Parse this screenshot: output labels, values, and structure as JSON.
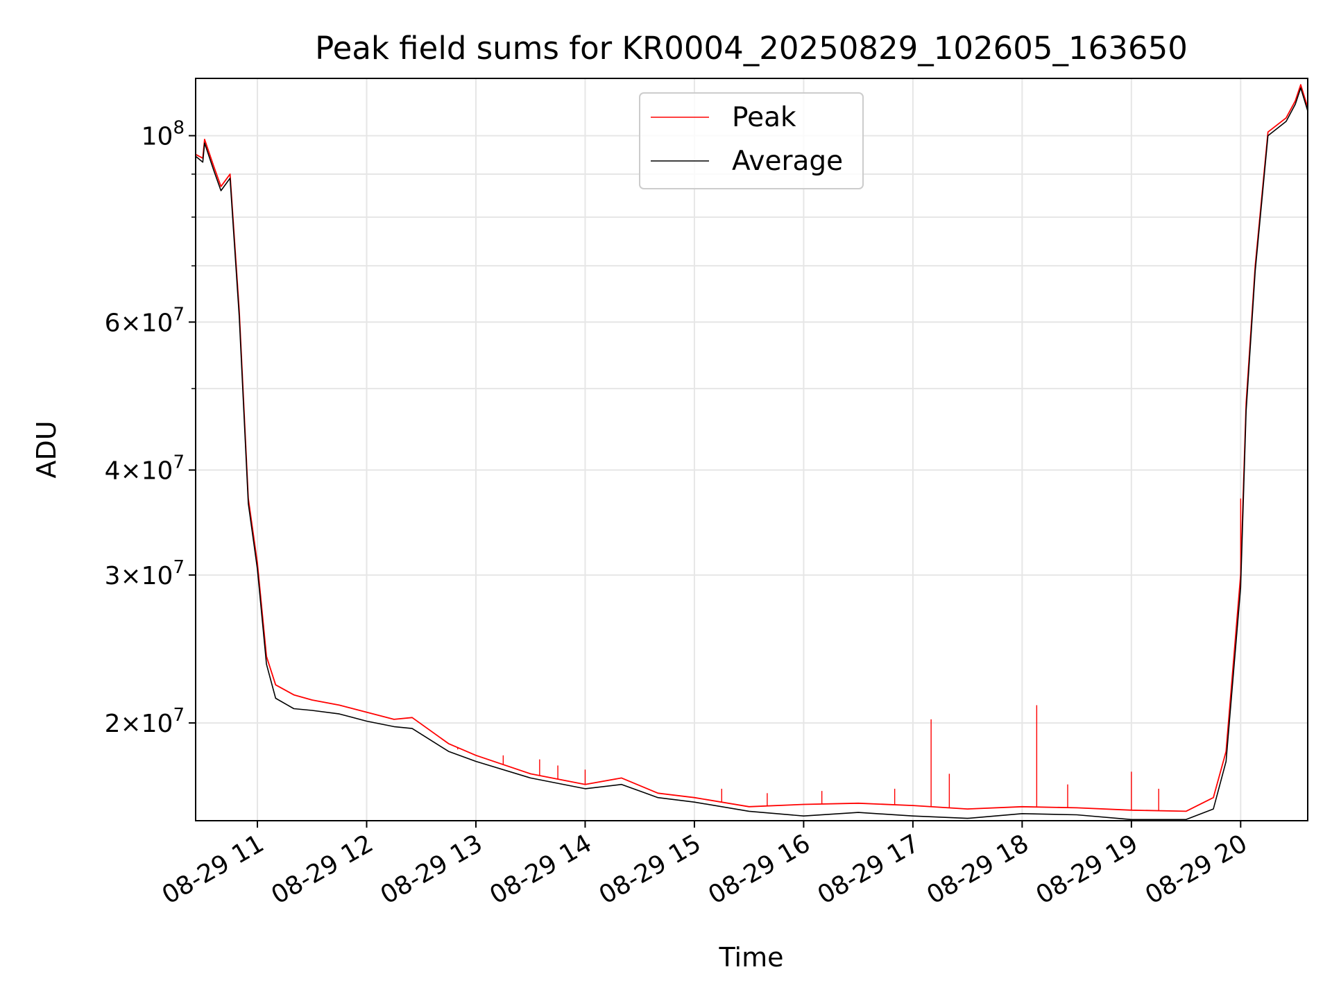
{
  "chart_data": {
    "type": "line",
    "title": "Peak field sums for KR0004_20250829_102605_163650",
    "xlabel": "Time",
    "ylabel": "ADU",
    "yscale": "log",
    "grid": true,
    "legend_position": "top-center",
    "xlim": [
      "2025-08-29T10:26:05",
      "2025-08-29T20:36:50"
    ],
    "ylim": [
      15300000,
      117000000
    ],
    "x_ticks": [
      {
        "value": "2025-08-29T11:00",
        "label": "08-29 11"
      },
      {
        "value": "2025-08-29T12:00",
        "label": "08-29 12"
      },
      {
        "value": "2025-08-29T13:00",
        "label": "08-29 13"
      },
      {
        "value": "2025-08-29T14:00",
        "label": "08-29 14"
      },
      {
        "value": "2025-08-29T15:00",
        "label": "08-29 15"
      },
      {
        "value": "2025-08-29T16:00",
        "label": "08-29 16"
      },
      {
        "value": "2025-08-29T17:00",
        "label": "08-29 17"
      },
      {
        "value": "2025-08-29T18:00",
        "label": "08-29 18"
      },
      {
        "value": "2025-08-29T19:00",
        "label": "08-29 19"
      },
      {
        "value": "2025-08-29T20:00",
        "label": "08-29 20"
      }
    ],
    "y_ticks": [
      {
        "value": 20000000,
        "mantissa": "2",
        "exp": "7"
      },
      {
        "value": 30000000,
        "mantissa": "3",
        "exp": "7"
      },
      {
        "value": 40000000,
        "mantissa": "4",
        "exp": "7"
      },
      {
        "value": 60000000,
        "mantissa": "6",
        "exp": "7"
      },
      {
        "value": 100000000,
        "mantissa": "",
        "exp": "8"
      }
    ],
    "y_minor_ticks": [
      50000000,
      70000000,
      80000000,
      90000000
    ],
    "series": [
      {
        "name": "Peak",
        "color": "#ff0000",
        "points": [
          [
            "2025-08-29T10:26:05",
            95000000
          ],
          [
            "2025-08-29T10:30",
            94000000
          ],
          [
            "2025-08-29T10:31",
            99000000
          ],
          [
            "2025-08-29T10:36",
            92000000
          ],
          [
            "2025-08-29T10:40",
            87000000
          ],
          [
            "2025-08-29T10:45",
            90000000
          ],
          [
            "2025-08-29T10:50",
            62000000
          ],
          [
            "2025-08-29T10:55",
            37000000
          ],
          [
            "2025-08-29T11:00",
            31000000
          ],
          [
            "2025-08-29T11:05",
            24000000
          ],
          [
            "2025-08-29T11:10",
            22200000
          ],
          [
            "2025-08-29T11:20",
            21600000
          ],
          [
            "2025-08-29T11:30",
            21300000
          ],
          [
            "2025-08-29T11:45",
            21000000
          ],
          [
            "2025-08-29T12:00",
            20600000
          ],
          [
            "2025-08-29T12:15",
            20200000
          ],
          [
            "2025-08-29T12:25",
            20300000
          ],
          [
            "2025-08-29T12:45",
            18900000
          ],
          [
            "2025-08-29T13:00",
            18300000
          ],
          [
            "2025-08-29T13:30",
            17400000
          ],
          [
            "2025-08-29T14:00",
            16900000
          ],
          [
            "2025-08-29T14:20",
            17200000
          ],
          [
            "2025-08-29T14:40",
            16500000
          ],
          [
            "2025-08-29T15:00",
            16300000
          ],
          [
            "2025-08-29T15:30",
            15900000
          ],
          [
            "2025-08-29T16:00",
            16000000
          ],
          [
            "2025-08-29T16:30",
            16050000
          ],
          [
            "2025-08-29T17:00",
            15950000
          ],
          [
            "2025-08-29T17:30",
            15800000
          ],
          [
            "2025-08-29T18:00",
            15900000
          ],
          [
            "2025-08-29T18:30",
            15850000
          ],
          [
            "2025-08-29T19:00",
            15750000
          ],
          [
            "2025-08-29T19:30",
            15700000
          ],
          [
            "2025-08-29T19:45",
            16300000
          ],
          [
            "2025-08-29T19:52",
            18500000
          ],
          [
            "2025-08-29T20:00",
            30000000
          ],
          [
            "2025-08-29T20:03",
            48000000
          ],
          [
            "2025-08-29T20:08",
            70000000
          ],
          [
            "2025-08-29T20:15",
            101000000
          ],
          [
            "2025-08-29T20:25",
            105000000
          ],
          [
            "2025-08-29T20:30",
            110000000
          ],
          [
            "2025-08-29T20:33",
            115000000
          ],
          [
            "2025-08-29T20:36:50",
            108000000
          ]
        ],
        "spikes": [
          [
            "2025-08-29T12:50",
            18600000
          ],
          [
            "2025-08-29T13:15",
            18300000
          ],
          [
            "2025-08-29T13:35",
            18100000
          ],
          [
            "2025-08-29T13:45",
            17800000
          ],
          [
            "2025-08-29T14:00",
            17600000
          ],
          [
            "2025-08-29T15:15",
            16700000
          ],
          [
            "2025-08-29T15:40",
            16500000
          ],
          [
            "2025-08-29T16:10",
            16600000
          ],
          [
            "2025-08-29T16:50",
            16700000
          ],
          [
            "2025-08-29T17:10",
            20200000
          ],
          [
            "2025-08-29T17:20",
            17400000
          ],
          [
            "2025-08-29T18:08",
            21000000
          ],
          [
            "2025-08-29T18:25",
            16900000
          ],
          [
            "2025-08-29T19:00",
            17500000
          ],
          [
            "2025-08-29T19:15",
            16700000
          ],
          [
            "2025-08-29T20:00",
            37000000
          ]
        ]
      },
      {
        "name": "Average",
        "color": "#000000",
        "points": [
          [
            "2025-08-29T10:26:05",
            94500000
          ],
          [
            "2025-08-29T10:30",
            93000000
          ],
          [
            "2025-08-29T10:31",
            98000000
          ],
          [
            "2025-08-29T10:36",
            91000000
          ],
          [
            "2025-08-29T10:40",
            86000000
          ],
          [
            "2025-08-29T10:45",
            89000000
          ],
          [
            "2025-08-29T10:50",
            61000000
          ],
          [
            "2025-08-29T10:55",
            36500000
          ],
          [
            "2025-08-29T11:00",
            30500000
          ],
          [
            "2025-08-29T11:05",
            23500000
          ],
          [
            "2025-08-29T11:10",
            21400000
          ],
          [
            "2025-08-29T11:20",
            20800000
          ],
          [
            "2025-08-29T11:30",
            20700000
          ],
          [
            "2025-08-29T11:45",
            20500000
          ],
          [
            "2025-08-29T12:00",
            20100000
          ],
          [
            "2025-08-29T12:15",
            19800000
          ],
          [
            "2025-08-29T12:25",
            19700000
          ],
          [
            "2025-08-29T12:45",
            18500000
          ],
          [
            "2025-08-29T13:00",
            18000000
          ],
          [
            "2025-08-29T13:30",
            17200000
          ],
          [
            "2025-08-29T14:00",
            16700000
          ],
          [
            "2025-08-29T14:20",
            16900000
          ],
          [
            "2025-08-29T14:40",
            16300000
          ],
          [
            "2025-08-29T15:00",
            16100000
          ],
          [
            "2025-08-29T15:30",
            15700000
          ],
          [
            "2025-08-29T16:00",
            15500000
          ],
          [
            "2025-08-29T16:30",
            15650000
          ],
          [
            "2025-08-29T17:00",
            15500000
          ],
          [
            "2025-08-29T17:30",
            15400000
          ],
          [
            "2025-08-29T18:00",
            15600000
          ],
          [
            "2025-08-29T18:30",
            15550000
          ],
          [
            "2025-08-29T19:00",
            15350000
          ],
          [
            "2025-08-29T19:30",
            15350000
          ],
          [
            "2025-08-29T19:45",
            15800000
          ],
          [
            "2025-08-29T19:52",
            18000000
          ],
          [
            "2025-08-29T20:00",
            29000000
          ],
          [
            "2025-08-29T20:03",
            47000000
          ],
          [
            "2025-08-29T20:08",
            69000000
          ],
          [
            "2025-08-29T20:15",
            100000000
          ],
          [
            "2025-08-29T20:25",
            104000000
          ],
          [
            "2025-08-29T20:30",
            109000000
          ],
          [
            "2025-08-29T20:33",
            114000000
          ],
          [
            "2025-08-29T20:36:50",
            107000000
          ]
        ]
      }
    ]
  }
}
